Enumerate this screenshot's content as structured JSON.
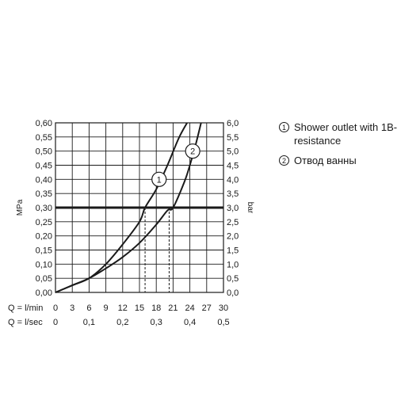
{
  "chart_data": {
    "type": "line",
    "ylabel_left": "MPa",
    "ylabel_right": "bar",
    "xlabel_top": "Q = l/min",
    "xlabel_bottom": "Q = l/sec",
    "xlim": [
      0,
      30
    ],
    "ylim": [
      0,
      0.6
    ],
    "x_ticks": [
      0,
      3,
      6,
      9,
      12,
      15,
      18,
      21,
      24,
      27,
      30
    ],
    "x_tick_labels": [
      "0",
      "3",
      "6",
      "9",
      "12",
      "15",
      "18",
      "21",
      "24",
      "27",
      "30"
    ],
    "x2_ticks": [
      0,
      6,
      12,
      18,
      24,
      30
    ],
    "x2_tick_labels": [
      "0",
      "0,1",
      "0,2",
      "0,3",
      "0,4",
      "0,5"
    ],
    "y_ticks": [
      0,
      0.05,
      0.1,
      0.15,
      0.2,
      0.25,
      0.3,
      0.35,
      0.4,
      0.45,
      0.5,
      0.55,
      0.6
    ],
    "y_tick_labels": [
      "0,00",
      "0,05",
      "0,10",
      "0,15",
      "0,20",
      "0,25",
      "0,30",
      "0,35",
      "0,40",
      "0,45",
      "0,50",
      "0,55",
      "0,60"
    ],
    "y2_tick_labels": [
      "0,0",
      "0,5",
      "1,0",
      "1,5",
      "2,0",
      "2,5",
      "3,0",
      "3,5",
      "4,0",
      "4,5",
      "5,0",
      "5,5",
      "6,0"
    ],
    "grid": true,
    "reference_line_y": 0.3,
    "series": [
      {
        "marker": "1",
        "x": [
          0,
          3,
          6,
          9,
          12,
          15,
          16,
          18,
          20,
          22,
          23.5
        ],
        "y": [
          0,
          0.025,
          0.05,
          0.1,
          0.17,
          0.25,
          0.3,
          0.365,
          0.45,
          0.545,
          0.6
        ],
        "marker_at": [
          18.5,
          0.4
        ],
        "drop_x": 16
      },
      {
        "marker": "2",
        "x": [
          0,
          3,
          6,
          9,
          12,
          15,
          18,
          20,
          21,
          23,
          24,
          25,
          26
        ],
        "y": [
          0,
          0.025,
          0.05,
          0.085,
          0.125,
          0.175,
          0.24,
          0.29,
          0.3,
          0.39,
          0.45,
          0.52,
          0.6
        ],
        "marker_at": [
          24.5,
          0.5
        ],
        "drop_x": 20.3
      }
    ]
  },
  "legend": {
    "items": [
      {
        "marker": "1",
        "label": "Shower outlet with 1B-resistance"
      },
      {
        "marker": "2",
        "label": "Отвод ванны"
      }
    ]
  }
}
